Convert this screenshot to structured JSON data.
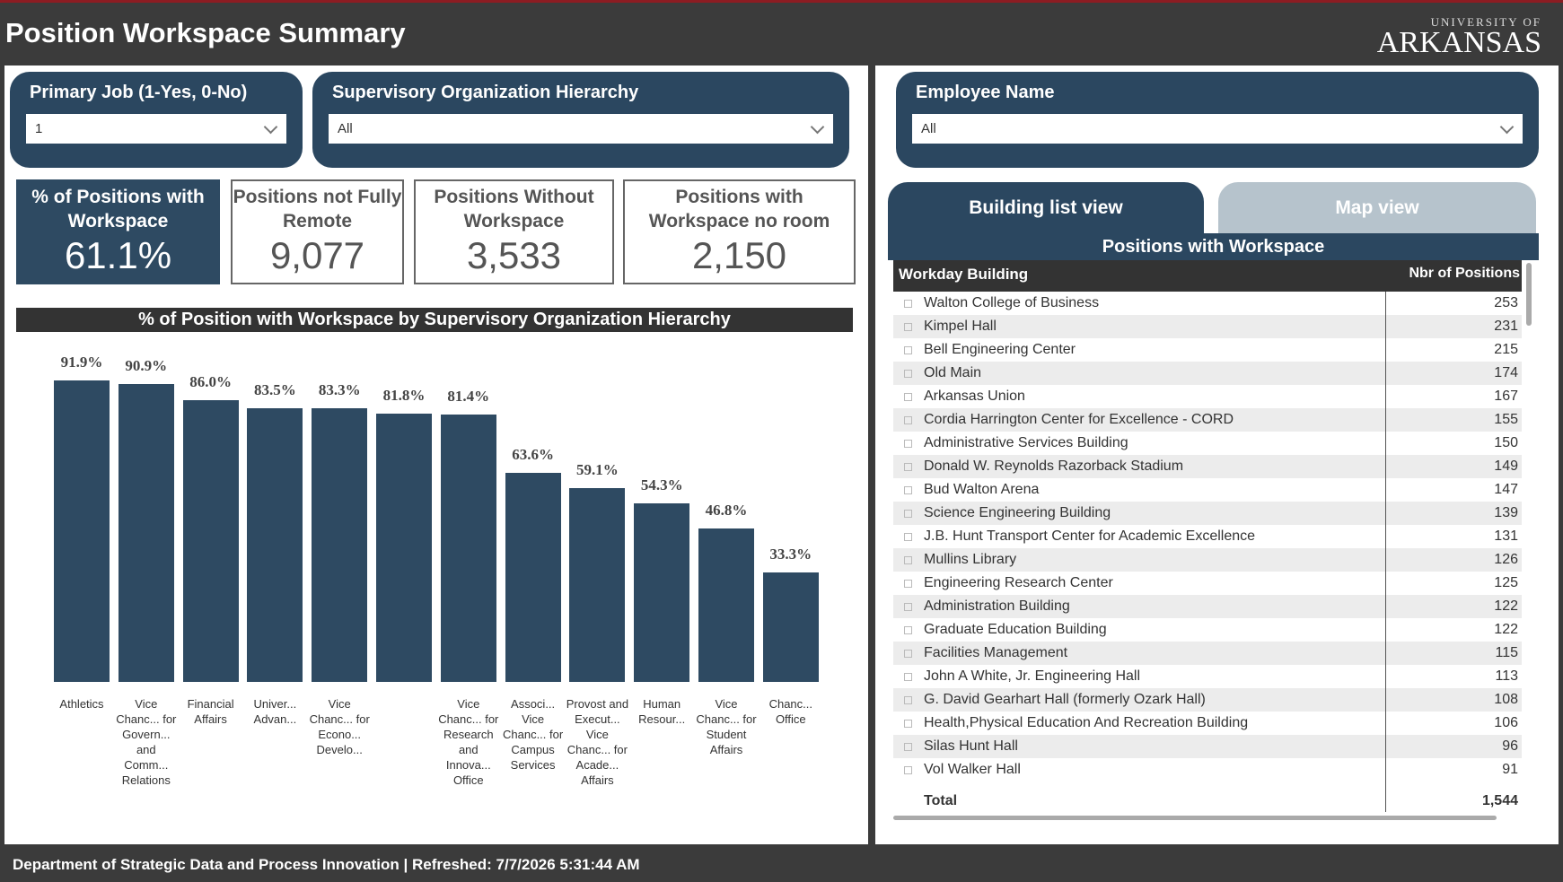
{
  "header": {
    "title": "Position Workspace Summary",
    "logo_top": "UNIVERSITY OF",
    "logo_main": "ARKANSAS"
  },
  "filters": [
    {
      "label": "Primary Job (1-Yes, 0-No)",
      "value": "1"
    },
    {
      "label": "Supervisory Organization Hierarchy",
      "value": "All"
    },
    {
      "label": "Employee Name",
      "value": "All"
    }
  ],
  "kpis": [
    {
      "label": "% of Positions with Workspace",
      "value": "61.1%"
    },
    {
      "label": "Positions not Fully Remote",
      "value": "9,077"
    },
    {
      "label": "Positions Without Workspace",
      "value": "3,533"
    },
    {
      "label": "Positions with Workspace no room",
      "value": "2,150"
    }
  ],
  "chart_data": {
    "type": "bar",
    "title": "% of Position with Workspace by Supervisory Organization Hierarchy",
    "categories": [
      "Athletics",
      "Vice Chanc... for Govern... and Comm... Relations",
      "Financial Affairs",
      "Univer... Advan...",
      "Vice Chanc... for Econo... Develo...",
      null,
      "Vice Chanc... for Research and Innova... Office",
      "Associ... Vice Chanc... for Campus Services",
      "Provost and Execut... Vice Chanc... for Acade... Affairs",
      "Human Resour...",
      "Vice Chanc... for Student Affairs",
      "Chanc... Office"
    ],
    "values": [
      91.9,
      90.9,
      86.0,
      83.5,
      83.3,
      81.8,
      81.4,
      63.6,
      59.1,
      54.3,
      46.8,
      33.3
    ],
    "value_labels": [
      "91.9%",
      "90.9%",
      "86.0%",
      "83.5%",
      "83.3%",
      "81.8%",
      "81.4%",
      "63.6%",
      "59.1%",
      "54.3%",
      "46.8%",
      "33.3%"
    ],
    "color": "#2e4a62"
  },
  "tabs": [
    "Building list view",
    "Map view"
  ],
  "table": {
    "title": "Positions with Workspace",
    "columns": [
      "Workday Building",
      "Nbr of Positions"
    ],
    "rows": [
      [
        "Walton College of Business",
        253
      ],
      [
        "Kimpel Hall",
        231
      ],
      [
        "Bell Engineering Center",
        215
      ],
      [
        "Old Main",
        174
      ],
      [
        "Arkansas Union",
        167
      ],
      [
        "Cordia Harrington Center for Excellence - CORD",
        155
      ],
      [
        "Administrative Services Building",
        150
      ],
      [
        "Donald W. Reynolds Razorback Stadium",
        149
      ],
      [
        "Bud Walton Arena",
        147
      ],
      [
        "Science Engineering Building",
        139
      ],
      [
        "J.B. Hunt Transport Center for Academic Excellence",
        131
      ],
      [
        "Mullins Library",
        126
      ],
      [
        "Engineering Research Center",
        125
      ],
      [
        "Administration Building",
        122
      ],
      [
        "Graduate Education Building",
        122
      ],
      [
        "Facilities Management",
        115
      ],
      [
        "John A White, Jr. Engineering Hall",
        113
      ],
      [
        "G. David Gearhart Hall (formerly Ozark Hall)",
        108
      ],
      [
        "Health,Physical Education And Recreation Building",
        106
      ],
      [
        "Silas Hunt Hall",
        96
      ],
      [
        "Vol Walker Hall",
        91
      ]
    ],
    "total": [
      "Total",
      "1,544"
    ]
  },
  "footer": {
    "department": "Department of Strategic Data and Process Innovation |",
    "refreshed_label": "Refreshed:",
    "refreshed": "7/7/2026 5:31:44 AM"
  }
}
